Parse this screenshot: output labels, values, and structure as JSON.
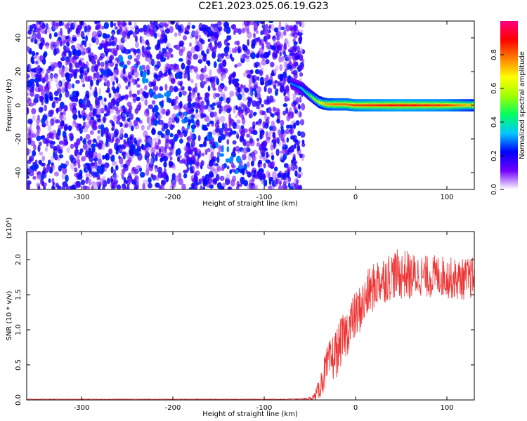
{
  "title": "C2E1.2023.025.06.19.G23",
  "chart_data": [
    {
      "type": "heatmap",
      "title": "C2E1.2023.025.06.19.G23",
      "xlabel": "Height of straight line (km)",
      "ylabel": "Frequency (Hz)",
      "xlim": [
        -360,
        130
      ],
      "ylim": [
        -50,
        50
      ],
      "x_ticks": [
        -300,
        -200,
        -100,
        0,
        100
      ],
      "x_tick_labels": [
        "-300",
        "-200",
        "-100",
        "0",
        "100"
      ],
      "y_ticks": [
        -40,
        -20,
        0,
        20,
        40
      ],
      "y_tick_labels": [
        "-40",
        "-20",
        "0",
        "20",
        "40"
      ],
      "colorbar": {
        "label": "Normalized spectral amplitude",
        "range": [
          0,
          1
        ],
        "ticks": [
          0.0,
          0.2,
          0.4,
          0.6,
          0.8
        ],
        "tick_labels": [
          "0.0",
          "0.2",
          "0.4",
          "0.6",
          "0.8"
        ],
        "colormap": [
          "#ffffff",
          "#7000ff",
          "#0000ff",
          "#00c8ff",
          "#00ff60",
          "#a0ff00",
          "#ffff00",
          "#ff8000",
          "#ff0000",
          "#ff0080"
        ]
      },
      "noise_region_x": [
        -360,
        -57
      ],
      "noise_mean_amplitude": 0.15,
      "signal_track": [
        {
          "x": -70,
          "y": 13,
          "amp": 0.3
        },
        {
          "x": -62,
          "y": 11,
          "amp": 0.3
        },
        {
          "x": -58,
          "y": 10,
          "amp": 0.35
        },
        {
          "x": -52,
          "y": 7,
          "amp": 0.45
        },
        {
          "x": -45,
          "y": 4,
          "amp": 0.55
        },
        {
          "x": -40,
          "y": 2,
          "amp": 0.6
        },
        {
          "x": -35,
          "y": 1,
          "amp": 0.7
        },
        {
          "x": -30,
          "y": 0.5,
          "amp": 0.75
        },
        {
          "x": -20,
          "y": 0.5,
          "amp": 0.8
        },
        {
          "x": -10,
          "y": 0.5,
          "amp": 0.8
        },
        {
          "x": 0,
          "y": 0,
          "amp": 0.85
        },
        {
          "x": 50,
          "y": 0,
          "amp": 0.9
        },
        {
          "x": 100,
          "y": 0,
          "amp": 0.85
        },
        {
          "x": 130,
          "y": 0,
          "amp": 0.7
        }
      ],
      "diagonal_feature": {
        "x": [
          -260,
          -120
        ],
        "y": [
          30,
          -40
        ]
      },
      "grid": false
    },
    {
      "type": "line",
      "xlabel": "Height of straight line (km)",
      "ylabel": "SNR (10 * v/v)",
      "y_scale_note": "(x10⁴)",
      "xlim": [
        -360,
        130
      ],
      "ylim": [
        0,
        2.4
      ],
      "x_ticks": [
        -300,
        -200,
        -100,
        0,
        100
      ],
      "x_tick_labels": [
        "-300",
        "-200",
        "-100",
        "0",
        "100"
      ],
      "y_ticks": [
        0.0,
        0.5,
        1.0,
        1.5,
        2.0
      ],
      "y_tick_labels": [
        "0.0",
        "0.5",
        "1.0",
        "1.5",
        "2.0"
      ],
      "line_color": "#ee3333",
      "grid": false,
      "series": [
        {
          "x": [
            -360,
            -340,
            -320,
            -300,
            -280,
            -260,
            -240,
            -220,
            -200,
            -180,
            -160,
            -140,
            -120,
            -100,
            -80,
            -60,
            -50,
            -45,
            -40,
            -35,
            -30,
            -25,
            -20,
            -15,
            -10,
            -5,
            0,
            5,
            10,
            15,
            20,
            25,
            30,
            35,
            40,
            45,
            50,
            55,
            60,
            70,
            80,
            90,
            100,
            110,
            120,
            130
          ],
          "values": [
            0.01,
            0.01,
            0.01,
            0.01,
            0.01,
            0.01,
            0.01,
            0.01,
            0.01,
            0.01,
            0.01,
            0.01,
            0.01,
            0.01,
            0.01,
            0.015,
            0.02,
            0.05,
            0.15,
            0.35,
            0.5,
            0.6,
            0.7,
            0.85,
            0.95,
            1.1,
            1.2,
            1.3,
            1.4,
            1.55,
            1.6,
            1.7,
            1.72,
            1.75,
            1.78,
            1.8,
            1.78,
            1.8,
            1.75,
            1.78,
            1.75,
            1.78,
            1.75,
            1.72,
            1.72,
            1.75
          ],
          "noise_amplitude": [
            0.005,
            0.005,
            0.005,
            0.005,
            0.005,
            0.005,
            0.005,
            0.005,
            0.005,
            0.005,
            0.005,
            0.005,
            0.005,
            0.005,
            0.005,
            0.01,
            0.02,
            0.05,
            0.15,
            0.25,
            0.3,
            0.35,
            0.35,
            0.35,
            0.35,
            0.35,
            0.35,
            0.35,
            0.35,
            0.35,
            0.35,
            0.35,
            0.35,
            0.35,
            0.35,
            0.35,
            0.35,
            0.35,
            0.35,
            0.3,
            0.3,
            0.3,
            0.3,
            0.3,
            0.3,
            0.3
          ]
        }
      ]
    }
  ]
}
